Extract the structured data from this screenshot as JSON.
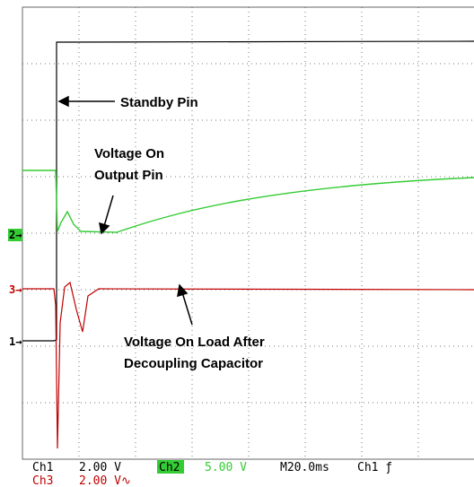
{
  "screen": {
    "annotations": [
      "Standby Pin",
      "Voltage On",
      "Output Pin",
      "Voltage On Load After",
      "Decoupling Capacitor"
    ],
    "markers": {
      "ch2": "2→",
      "ch3": "3→",
      "ch1": "1→"
    },
    "status": {
      "ch1": "Ch1",
      "ch1_scale": "2.00 V",
      "ch2": "Ch2",
      "ch2_scale": "5.00 V",
      "timebase": "M20.0ms",
      "trigger": "Ch1 ƒ",
      "ch3": "Ch3",
      "ch3_scale": "2.00 V∿"
    }
  }
}
